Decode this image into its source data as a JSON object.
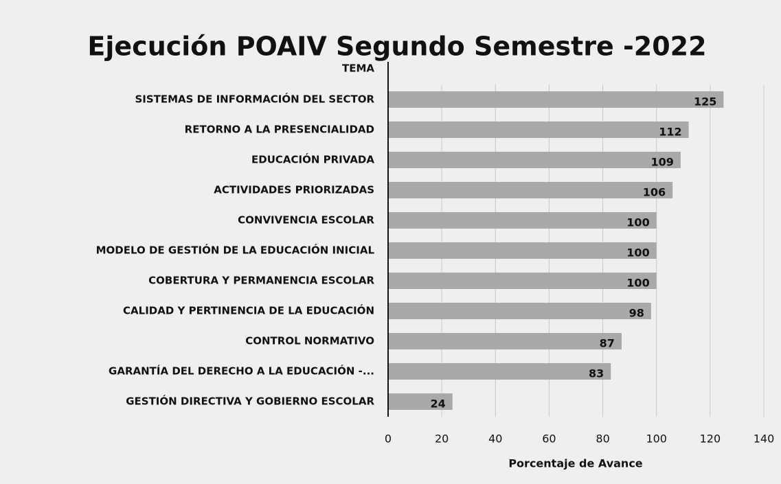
{
  "chart_data": {
    "type": "barh",
    "title": "Ejecución POAIV Segundo Semestre -2022",
    "y_label": "TEMA",
    "x_label": "Porcentaje de Avance",
    "categories": [
      "SISTEMAS DE INFORMACIÓN DEL SECTOR",
      "RETORNO A LA PRESENCIALIDAD",
      "EDUCACIÓN PRIVADA",
      "ACTIVIDADES PRIORIZADAS",
      "CONVIVENCIA ESCOLAR",
      "MODELO DE GESTIÓN DE LA EDUCACIÓN INICIAL",
      "COBERTURA Y PERMANENCIA ESCOLAR",
      "CALIDAD Y PERTINENCIA DE LA EDUCACIÓN",
      "CONTROL NORMATIVO",
      "GARANTÍA DEL DERECHO A LA EDUCACIÓN -...",
      "GESTIÓN DIRECTIVA Y GOBIERNO ESCOLAR"
    ],
    "values": [
      125,
      112,
      109,
      106,
      100,
      100,
      100,
      98,
      87,
      83,
      24
    ],
    "color": "#a9a9a9",
    "xlim": [
      0,
      140
    ],
    "xticks": [
      0,
      20,
      40,
      60,
      80,
      100,
      120,
      140
    ],
    "grid": true
  }
}
